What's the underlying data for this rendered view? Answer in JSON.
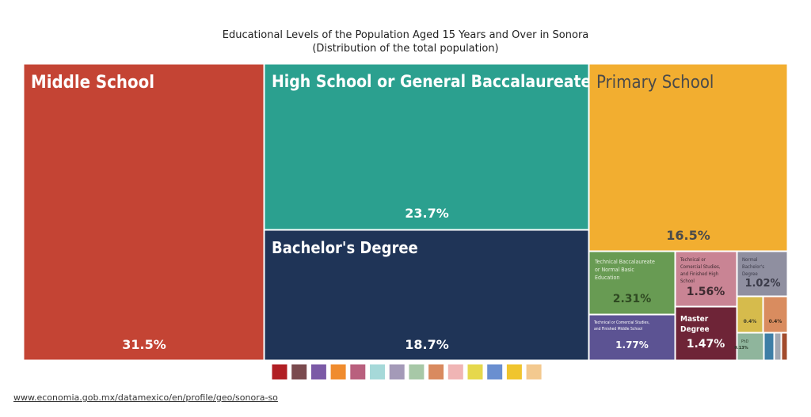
{
  "chart_data": {
    "type": "treemap",
    "title": "Educational Levels of the Population Aged 15 Years and Over in Sonora",
    "subtitle": "(Distribution of the total population)",
    "items": [
      {
        "label": "Middle School",
        "value": 31.5,
        "value_label": "31.5%",
        "color": "#c44434"
      },
      {
        "label": "High School or General Baccalaureate",
        "value": 23.7,
        "value_label": "23.7%",
        "color": "#2ba08f"
      },
      {
        "label": "Bachelor's Degree",
        "value": 18.7,
        "value_label": "18.7%",
        "color": "#1f3457"
      },
      {
        "label": "Primary School",
        "value": 16.5,
        "value_label": "16.5%",
        "color": "#f2ae30"
      },
      {
        "label": "Technical Baccalaureate or Normal Basic Education",
        "value": 2.31,
        "value_label": "2.31%",
        "color": "#689b53"
      },
      {
        "label": "Technical or Comercial Studies, and Finished High School",
        "value": 1.56,
        "value_label": "1.56%",
        "color": "#c98494"
      },
      {
        "label": "Normal Bachelor's Degree",
        "value": 1.02,
        "value_label": "1.02%",
        "color": "#8f8fa0"
      },
      {
        "label": "Technical or Comercial Studies, and Finished Middle School",
        "value": 1.77,
        "value_label": "1.77%",
        "color": "#5c5393"
      },
      {
        "label": "Master Degree",
        "value": 1.47,
        "value_label": "1.47%",
        "color": "#6e2437"
      },
      {
        "label": "",
        "value": 0.4,
        "value_label": "0.4%",
        "color": "#d6bb4c"
      },
      {
        "label": "",
        "value": 0.4,
        "value_label": "0.4%",
        "color": "#d98c5f"
      },
      {
        "label": "PhD",
        "value": 0.13,
        "value_label": "0.13%",
        "color": "#8fb59c"
      },
      {
        "label": "",
        "value": 0.1,
        "value_label": "",
        "color": "#3d7ea6"
      },
      {
        "label": "",
        "value": 0.05,
        "value_label": "",
        "color": "#a0a7b2"
      },
      {
        "label": "",
        "value": 0.05,
        "value_label": "",
        "color": "#a24b2c"
      }
    ],
    "legend_colors": [
      "#b11f24",
      "#7a4a4e",
      "#7b5aa6",
      "#f08c2e",
      "#b9607e",
      "#a6d9d9",
      "#a49ab8",
      "#a7c8a7",
      "#d98a5f",
      "#f0b5b5",
      "#e6d84c",
      "#6a8fd0",
      "#f0c52e",
      "#f3c98f"
    ]
  },
  "footer": {
    "link": "www.economia.gob.mx/datamexico/en/profile/geo/sonora-so"
  }
}
